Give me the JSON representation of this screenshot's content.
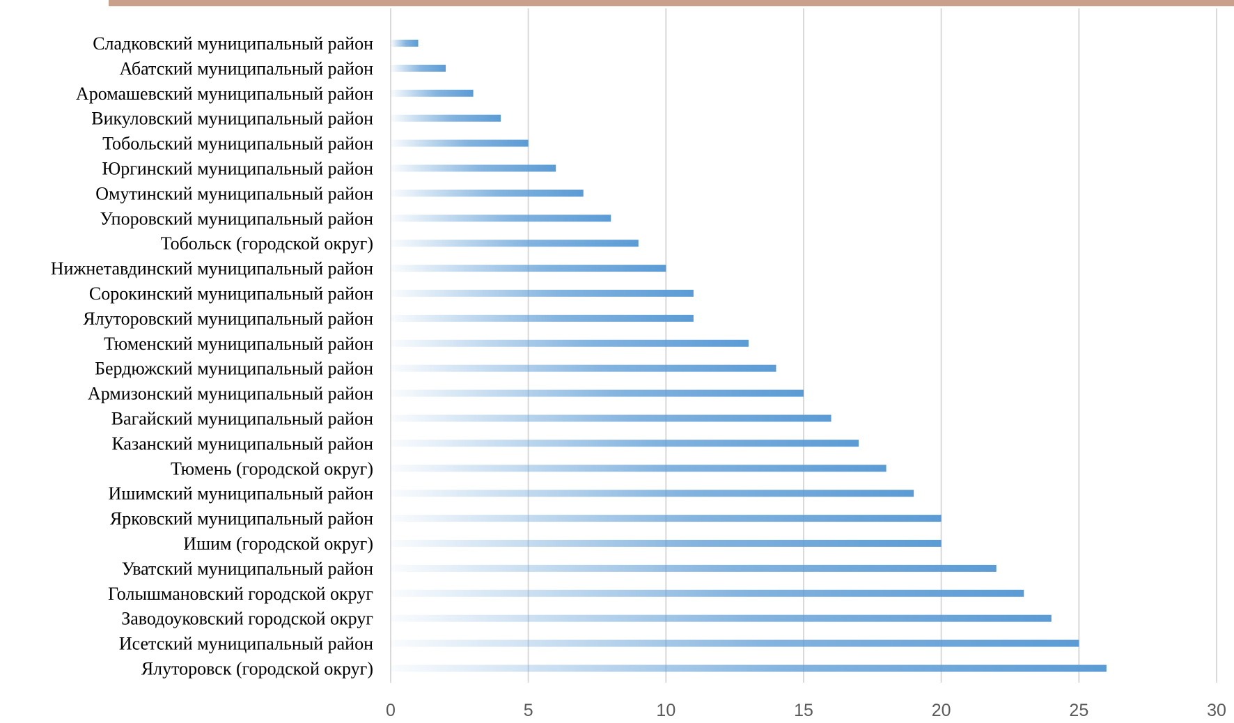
{
  "colors": {
    "top_band": "#c8a08b",
    "bar": "#5b9bd5",
    "grid": "#d9d9d9",
    "axis_text": "#595959",
    "label_text": "#000000"
  },
  "chart_data": {
    "type": "bar",
    "orientation": "horizontal",
    "title": "",
    "xlabel": "",
    "ylabel": "",
    "xlim": [
      0,
      30
    ],
    "x_ticks": [
      0,
      5,
      10,
      15,
      20,
      25,
      30
    ],
    "grid": "vertical",
    "legend": "none",
    "bar_style": "gradient-fade-left",
    "categories": [
      "Сладковский муниципальный район",
      "Абатский муниципальный район",
      "Аромашевский муниципальный район",
      "Викуловский муниципальный район",
      "Тобольский муниципальный район",
      "Юргинский муниципальный район",
      "Омутинский муниципальный район",
      "Упоровский муниципальный район",
      "Тобольск (городской округ)",
      "Нижнетавдинский муниципальный район",
      "Сорокинский муниципальный район",
      "Ялуторовский муниципальный район",
      "Тюменский муниципальный район",
      "Бердюжский муниципальный район",
      "Армизонский муниципальный район",
      "Вагайский муниципальный район",
      "Казанский муниципальный район",
      "Тюмень (городской округ)",
      "Ишимский муниципальный район",
      "Ярковский муниципальный район",
      "Ишим (городской округ)",
      "Уватский муниципальный район",
      "Голышмановский городской округ",
      "Заводоуковский городской округ",
      "Исетский муниципальный район",
      "Ялуторовск (городской округ)"
    ],
    "values": [
      1,
      2,
      3,
      4,
      5,
      6,
      7,
      8,
      9,
      10,
      11,
      11,
      13,
      14,
      15,
      16,
      17,
      18,
      19,
      20,
      20,
      22,
      23,
      24,
      25,
      26
    ]
  }
}
